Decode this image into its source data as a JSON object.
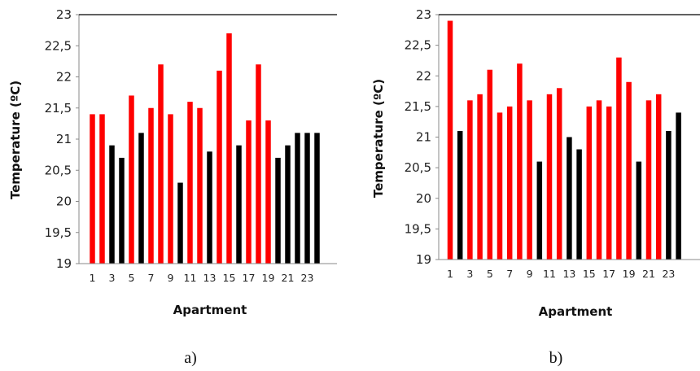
{
  "chart_data": [
    {
      "type": "bar",
      "caption": "a)",
      "xlabel": "Apartment",
      "ylabel": "Temperature (ºC)",
      "ylim": [
        19,
        23
      ],
      "yticks": [
        "19",
        "19,5",
        "20",
        "20,5",
        "21",
        "21,5",
        "22",
        "22,5",
        "23"
      ],
      "categories": [
        "1",
        "2",
        "3",
        "4",
        "5",
        "6",
        "7",
        "8",
        "9",
        "10",
        "11",
        "12",
        "13",
        "14",
        "15",
        "16",
        "17",
        "18",
        "19",
        "20",
        "21",
        "22",
        "23",
        "24"
      ],
      "xtick_labels": [
        "1",
        "3",
        "5",
        "7",
        "9",
        "11",
        "13",
        "15",
        "17",
        "19",
        "21",
        "23"
      ],
      "values": [
        21.4,
        21.4,
        20.9,
        20.7,
        21.7,
        21.1,
        21.5,
        22.2,
        21.4,
        20.3,
        21.6,
        21.5,
        20.8,
        22.1,
        22.7,
        20.9,
        21.3,
        22.2,
        21.3,
        20.7,
        20.9,
        21.1,
        21.1,
        21.1
      ],
      "bar_colors": [
        "#ff0000",
        "#ff0000",
        "#000000",
        "#000000",
        "#ff0000",
        "#000000",
        "#ff0000",
        "#ff0000",
        "#ff0000",
        "#000000",
        "#ff0000",
        "#ff0000",
        "#000000",
        "#ff0000",
        "#ff0000",
        "#000000",
        "#ff0000",
        "#ff0000",
        "#ff0000",
        "#000000",
        "#000000",
        "#000000",
        "#000000",
        "#000000"
      ],
      "grid": false
    },
    {
      "type": "bar",
      "caption": "b)",
      "xlabel": "Apartment",
      "ylabel": "Temperature (ºC)",
      "ylim": [
        19,
        23
      ],
      "yticks": [
        "19",
        "19,5",
        "20",
        "20,5",
        "21",
        "21,5",
        "22",
        "22,5",
        "23"
      ],
      "categories": [
        "1",
        "2",
        "3",
        "4",
        "5",
        "6",
        "7",
        "8",
        "9",
        "10",
        "11",
        "12",
        "13",
        "14",
        "15",
        "16",
        "17",
        "18",
        "19",
        "20",
        "21",
        "22",
        "23",
        "24"
      ],
      "xtick_labels": [
        "1",
        "3",
        "5",
        "7",
        "9",
        "11",
        "13",
        "15",
        "17",
        "19",
        "21",
        "23"
      ],
      "values": [
        22.9,
        21.1,
        21.6,
        21.7,
        22.1,
        21.4,
        21.5,
        22.2,
        21.6,
        20.6,
        21.7,
        21.8,
        21.0,
        20.8,
        21.5,
        21.6,
        21.5,
        22.3,
        21.9,
        20.6,
        21.6,
        21.7,
        21.1,
        21.4
      ],
      "bar_colors": [
        "#ff0000",
        "#000000",
        "#ff0000",
        "#ff0000",
        "#ff0000",
        "#ff0000",
        "#ff0000",
        "#ff0000",
        "#ff0000",
        "#000000",
        "#ff0000",
        "#ff0000",
        "#000000",
        "#000000",
        "#ff0000",
        "#ff0000",
        "#ff0000",
        "#ff0000",
        "#ff0000",
        "#000000",
        "#ff0000",
        "#ff0000",
        "#000000",
        "#000000"
      ],
      "grid": false
    }
  ]
}
